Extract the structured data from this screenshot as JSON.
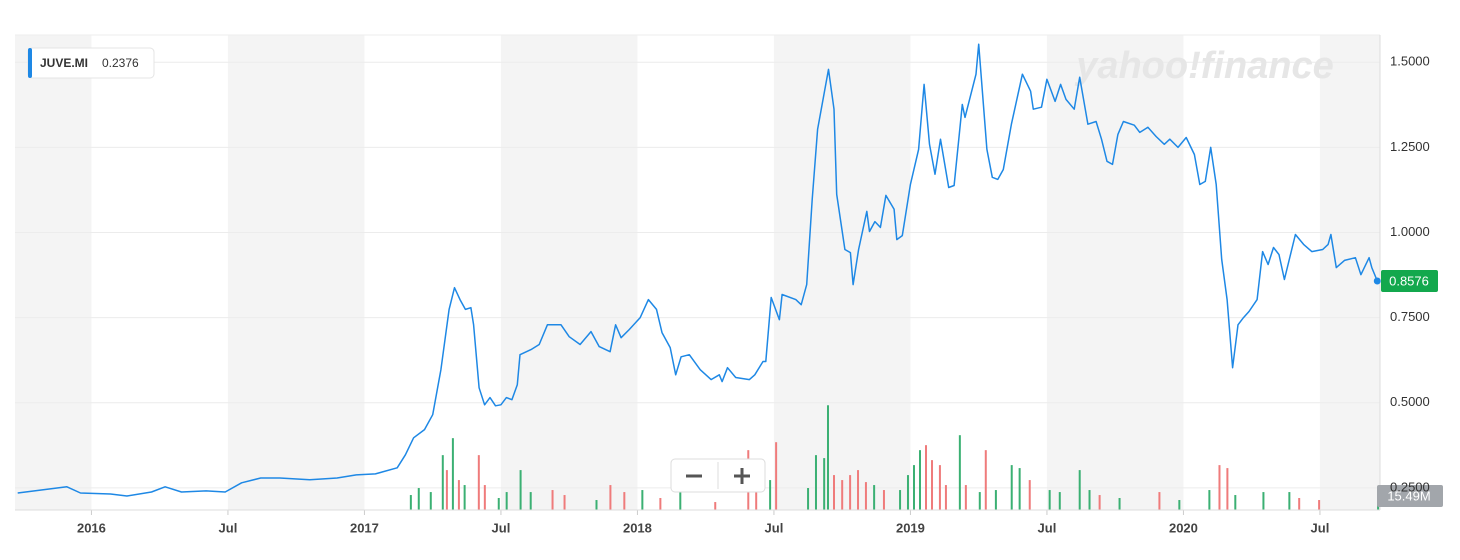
{
  "chart_data": {
    "type": "line",
    "watermark": "yahoo!finance",
    "legend_value": 0.2376,
    "xlim": [
      2015.72,
      2020.72
    ],
    "xticks": [
      {
        "value": 2016,
        "label": "2016"
      },
      {
        "value": 2016.5,
        "label": "Jul"
      },
      {
        "value": 2017,
        "label": "2017"
      },
      {
        "value": 2017.5,
        "label": "Jul"
      },
      {
        "value": 2018,
        "label": "2018"
      },
      {
        "value": 2018.5,
        "label": "Jul"
      },
      {
        "value": 2019,
        "label": "2019"
      },
      {
        "value": 2019.5,
        "label": "Jul"
      },
      {
        "value": 2020,
        "label": "2020"
      },
      {
        "value": 2020.5,
        "label": "Jul"
      }
    ],
    "ylim": [
      0.185,
      1.58
    ],
    "yticks": [
      {
        "value": 0.25,
        "label": "0.2500"
      },
      {
        "value": 0.5,
        "label": "0.5000"
      },
      {
        "value": 0.75,
        "label": "0.7500"
      },
      {
        "value": 1.0,
        "label": "1.0000"
      },
      {
        "value": 1.25,
        "label": "1.2500"
      },
      {
        "value": 1.5,
        "label": "1.5000"
      }
    ],
    "y2lim": [
      0,
      400
    ],
    "grid": true,
    "shade_color": "#f4f4f4",
    "last_badge_color": "#13a84d",
    "volume_badge_color": "#a2a6ab",
    "series": [
      {
        "name": "JUVE.MI",
        "type": "line",
        "color": "#1e88e5",
        "x": [
          2015.73,
          2015.82,
          2015.91,
          2015.96,
          2016.07,
          2016.13,
          2016.22,
          2016.27,
          2016.33,
          2016.42,
          2016.49,
          2016.55,
          2016.62,
          2016.69,
          2016.8,
          2016.9,
          2016.97,
          2017.04,
          2017.12,
          2017.15,
          2017.18,
          2017.22,
          2017.25,
          2017.28,
          2017.31,
          2017.33,
          2017.35,
          2017.37,
          2017.39,
          2017.4,
          2017.42,
          2017.44,
          2017.46,
          2017.48,
          2017.5,
          2017.52,
          2017.54,
          2017.56,
          2017.57,
          2017.61,
          2017.64,
          2017.67,
          2017.72,
          2017.75,
          2017.79,
          2017.83,
          2017.86,
          2017.9,
          2017.92,
          2017.94,
          2017.97,
          2018.01,
          2018.04,
          2018.07,
          2018.09,
          2018.12,
          2018.14,
          2018.16,
          2018.19,
          2018.23,
          2018.27,
          2018.3,
          2018.31,
          2018.33,
          2018.36,
          2018.41,
          2018.43,
          2018.46,
          2018.47,
          2018.49,
          2018.52,
          2018.53,
          2018.58,
          2018.6,
          2018.62,
          2018.64,
          2018.66,
          2018.7,
          2018.72,
          2018.73,
          2018.76,
          2018.78,
          2018.79,
          2018.81,
          2018.84,
          2018.85,
          2018.87,
          2018.89,
          2018.91,
          2018.94,
          2018.95,
          2018.97,
          2019.0,
          2019.03,
          2019.05,
          2019.07,
          2019.09,
          2019.11,
          2019.14,
          2019.16,
          2019.19,
          2019.2,
          2019.24,
          2019.25,
          2019.28,
          2019.3,
          2019.32,
          2019.34,
          2019.37,
          2019.41,
          2019.44,
          2019.45,
          2019.48,
          2019.5,
          2019.53,
          2019.55,
          2019.57,
          2019.6,
          2019.62,
          2019.65,
          2019.68,
          2019.7,
          2019.72,
          2019.74,
          2019.76,
          2019.78,
          2019.82,
          2019.84,
          2019.87,
          2019.9,
          2019.93,
          2019.95,
          2019.98,
          2020.01,
          2020.04,
          2020.06,
          2020.08,
          2020.1,
          2020.12,
          2020.14,
          2020.16,
          2020.18,
          2020.2,
          2020.22,
          2020.24,
          2020.27,
          2020.29,
          2020.31,
          2020.33,
          2020.35,
          2020.37,
          2020.41,
          2020.44,
          2020.47,
          2020.51,
          2020.53,
          2020.54,
          2020.56,
          2020.59,
          2020.63,
          2020.65,
          2020.68,
          2020.69,
          2020.71
        ],
        "values": [
          0.235,
          0.244,
          0.253,
          0.235,
          0.232,
          0.226,
          0.238,
          0.253,
          0.238,
          0.241,
          0.238,
          0.265,
          0.279,
          0.279,
          0.274,
          0.279,
          0.288,
          0.291,
          0.309,
          0.347,
          0.397,
          0.421,
          0.465,
          0.597,
          0.774,
          0.838,
          0.803,
          0.774,
          0.779,
          0.729,
          0.544,
          0.494,
          0.515,
          0.491,
          0.494,
          0.515,
          0.509,
          0.553,
          0.641,
          0.656,
          0.671,
          0.729,
          0.729,
          0.694,
          0.671,
          0.709,
          0.665,
          0.65,
          0.729,
          0.691,
          0.715,
          0.75,
          0.803,
          0.774,
          0.706,
          0.662,
          0.582,
          0.635,
          0.641,
          0.597,
          0.568,
          0.582,
          0.562,
          0.603,
          0.574,
          0.568,
          0.582,
          0.621,
          0.621,
          0.809,
          0.744,
          0.818,
          0.803,
          0.788,
          0.847,
          1.097,
          1.303,
          1.479,
          1.362,
          1.112,
          0.95,
          0.941,
          0.847,
          0.95,
          1.062,
          1.003,
          1.032,
          1.015,
          1.109,
          1.068,
          0.979,
          0.991,
          1.141,
          1.244,
          1.435,
          1.259,
          1.171,
          1.274,
          1.132,
          1.138,
          1.376,
          1.338,
          1.465,
          1.553,
          1.244,
          1.162,
          1.156,
          1.185,
          1.318,
          1.465,
          1.415,
          1.362,
          1.368,
          1.45,
          1.385,
          1.435,
          1.391,
          1.362,
          1.456,
          1.318,
          1.326,
          1.274,
          1.209,
          1.2,
          1.288,
          1.326,
          1.315,
          1.294,
          1.309,
          1.282,
          1.259,
          1.274,
          1.25,
          1.279,
          1.229,
          1.141,
          1.15,
          1.25,
          1.141,
          0.921,
          0.803,
          0.603,
          0.729,
          0.75,
          0.768,
          0.803,
          0.944,
          0.906,
          0.956,
          0.935,
          0.862,
          0.994,
          0.965,
          0.944,
          0.95,
          0.965,
          0.994,
          0.897,
          0.918,
          0.926,
          0.876,
          0.926,
          0.897,
          0.8576
        ]
      },
      {
        "type": "bar",
        "axis": "y2",
        "x": [
          2017.17,
          2017.199,
          2017.243,
          2017.287,
          2017.302,
          2017.324,
          2017.346,
          2017.367,
          2017.419,
          2017.441,
          2017.492,
          2017.521,
          2017.572,
          2017.609,
          2017.689,
          2017.733,
          2017.85,
          2017.901,
          2017.952,
          2018.018,
          2018.084,
          2018.157,
          2018.285,
          2018.406,
          2018.435,
          2018.486,
          2018.508,
          2018.625,
          2018.654,
          2018.684,
          2018.698,
          2018.72,
          2018.75,
          2018.779,
          2018.808,
          2018.837,
          2018.867,
          2018.903,
          2018.962,
          2018.991,
          2019.013,
          2019.035,
          2019.057,
          2019.079,
          2019.108,
          2019.13,
          2019.181,
          2019.203,
          2019.254,
          2019.276,
          2019.313,
          2019.371,
          2019.4,
          2019.437,
          2019.51,
          2019.547,
          2019.62,
          2019.656,
          2019.693,
          2019.766,
          2019.912,
          2019.985,
          2020.095,
          2020.132,
          2020.161,
          2020.19,
          2020.293,
          2020.388,
          2020.424,
          2020.497,
          2020.713
        ],
        "values": [
          12.6,
          18.5,
          15.1,
          46.2,
          33.6,
          60.5,
          25.2,
          21,
          46.2,
          21,
          10.1,
          15.1,
          33.6,
          15.1,
          16.8,
          12.6,
          8.4,
          21,
          15.1,
          16.8,
          10.1,
          25.2,
          6.7,
          50.4,
          33.6,
          25.2,
          57.1,
          18.5,
          46.2,
          43.7,
          88.2,
          29.4,
          25.2,
          29.4,
          33.6,
          23.5,
          21,
          16.8,
          16.8,
          29.4,
          37.8,
          50.4,
          54.6,
          42,
          37.8,
          21,
          63,
          21,
          15.1,
          50.4,
          16.8,
          37.8,
          35.3,
          25.2,
          16.8,
          15.1,
          33.6,
          16.8,
          12.6,
          10.1,
          15.1,
          8.4,
          16.8,
          37.8,
          35.3,
          12.6,
          15.1,
          15.1,
          10.1,
          8.4,
          15.49
        ],
        "value_labels": [
          null,
          null,
          null,
          null,
          null,
          null,
          null,
          null,
          null,
          null,
          null,
          null,
          null,
          null,
          null,
          null,
          null,
          null,
          null,
          null,
          null,
          null,
          null,
          null,
          null,
          null,
          null,
          null,
          null,
          null,
          null,
          null,
          null,
          null,
          null,
          null,
          null,
          null,
          null,
          null,
          null,
          null,
          null,
          null,
          null,
          null,
          null,
          null,
          null,
          null,
          null,
          null,
          null,
          null,
          null,
          null,
          null,
          null,
          null,
          null,
          null,
          null,
          null,
          null,
          null,
          null,
          null,
          null,
          null,
          null,
          "15.49M"
        ],
        "colors": [
          "#3bb073",
          "#3bb073",
          "#3bb073",
          "#3bb073",
          "#ef7b7b",
          "#3bb073",
          "#ef7b7b",
          "#3bb073",
          "#ef7b7b",
          "#ef7b7b",
          "#3bb073",
          "#3bb073",
          "#3bb073",
          "#3bb073",
          "#ef7b7b",
          "#ef7b7b",
          "#3bb073",
          "#ef7b7b",
          "#ef7b7b",
          "#3bb073",
          "#ef7b7b",
          "#3bb073",
          "#ef7b7b",
          "#ef7b7b",
          "#ef7b7b",
          "#3bb073",
          "#ef7b7b",
          "#3bb073",
          "#3bb073",
          "#3bb073",
          "#3bb073",
          "#ef7b7b",
          "#ef7b7b",
          "#ef7b7b",
          "#ef7b7b",
          "#ef7b7b",
          "#3bb073",
          "#ef7b7b",
          "#3bb073",
          "#3bb073",
          "#3bb073",
          "#3bb073",
          "#ef7b7b",
          "#ef7b7b",
          "#ef7b7b",
          "#ef7b7b",
          "#3bb073",
          "#ef7b7b",
          "#3bb073",
          "#ef7b7b",
          "#3bb073",
          "#3bb073",
          "#3bb073",
          "#ef7b7b",
          "#3bb073",
          "#3bb073",
          "#3bb073",
          "#3bb073",
          "#ef7b7b",
          "#3bb073",
          "#ef7b7b",
          "#3bb073",
          "#3bb073",
          "#ef7b7b",
          "#ef7b7b",
          "#3bb073",
          "#3bb073",
          "#3bb073",
          "#ef7b7b",
          "#ef7b7b",
          "#3bb073"
        ]
      }
    ]
  }
}
